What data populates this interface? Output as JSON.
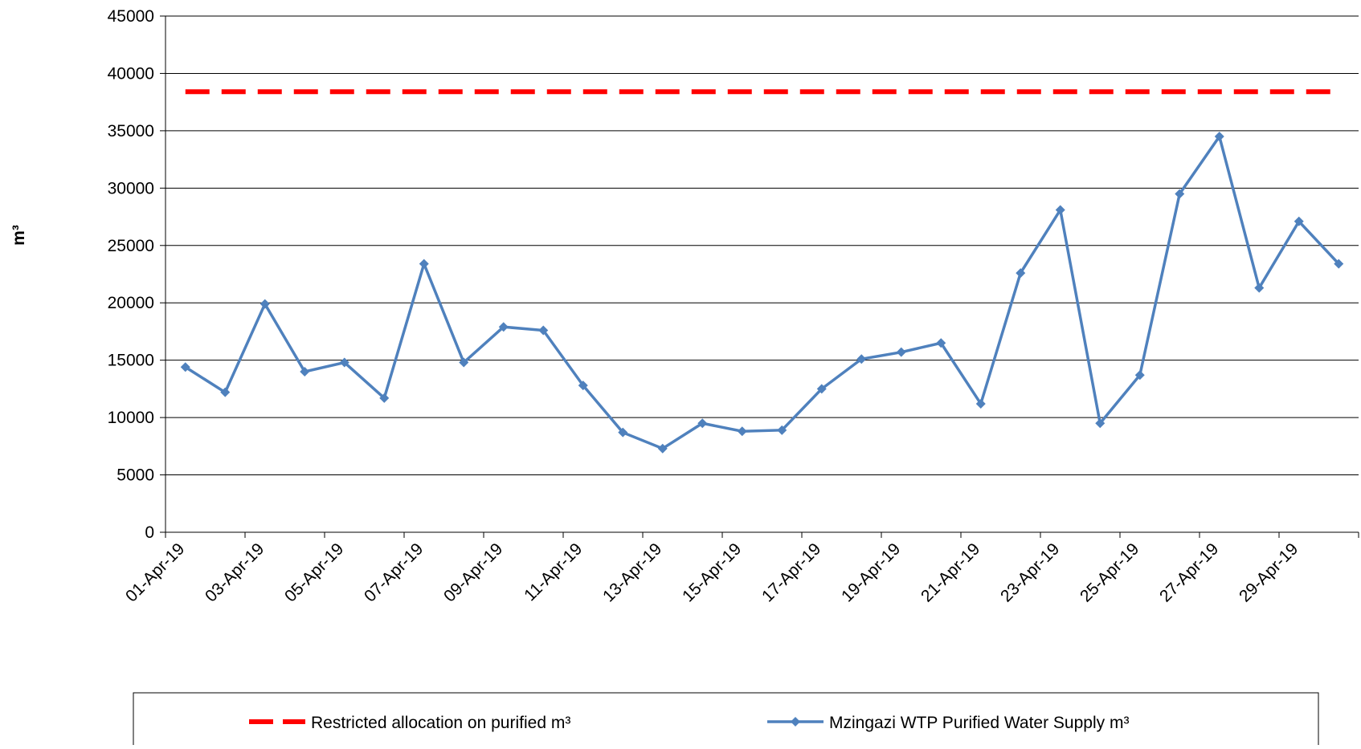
{
  "chart_data": {
    "type": "line",
    "ylabel": "m³",
    "categories": [
      "01-Apr-19",
      null,
      "03-Apr-19",
      null,
      "05-Apr-19",
      null,
      "07-Apr-19",
      null,
      "09-Apr-19",
      null,
      "11-Apr-19",
      null,
      "13-Apr-19",
      null,
      "15-Apr-19",
      null,
      "17-Apr-19",
      null,
      "19-Apr-19",
      null,
      "21-Apr-19",
      null,
      "23-Apr-19",
      null,
      "25-Apr-19",
      null,
      "27-Apr-19",
      null,
      "29-Apr-19",
      null
    ],
    "series": [
      {
        "name": "Restricted allocation on purified m³",
        "color": "#ff0000",
        "style": "dashed",
        "values": [
          38400,
          38400,
          38400,
          38400,
          38400,
          38400,
          38400,
          38400,
          38400,
          38400,
          38400,
          38400,
          38400,
          38400,
          38400,
          38400,
          38400,
          38400,
          38400,
          38400,
          38400,
          38400,
          38400,
          38400,
          38400,
          38400,
          38400,
          38400,
          38400,
          38400
        ]
      },
      {
        "name": "Mzingazi WTP Purified Water Supply m³",
        "color": "#4f81bd",
        "style": "solid",
        "marker": "diamond",
        "values": [
          14400,
          12200,
          19900,
          14000,
          14800,
          11700,
          23400,
          14800,
          17900,
          17600,
          12800,
          8700,
          7300,
          9500,
          8800,
          8900,
          12500,
          15100,
          15700,
          16500,
          11200,
          22600,
          28100,
          9500,
          13700,
          29500,
          34500,
          21300,
          27100,
          23400
        ]
      }
    ],
    "ylim": [
      0,
      45000
    ],
    "yticks": [
      0,
      5000,
      10000,
      15000,
      20000,
      25000,
      30000,
      35000,
      40000,
      45000
    ],
    "grid": true,
    "legend": "bottom"
  }
}
